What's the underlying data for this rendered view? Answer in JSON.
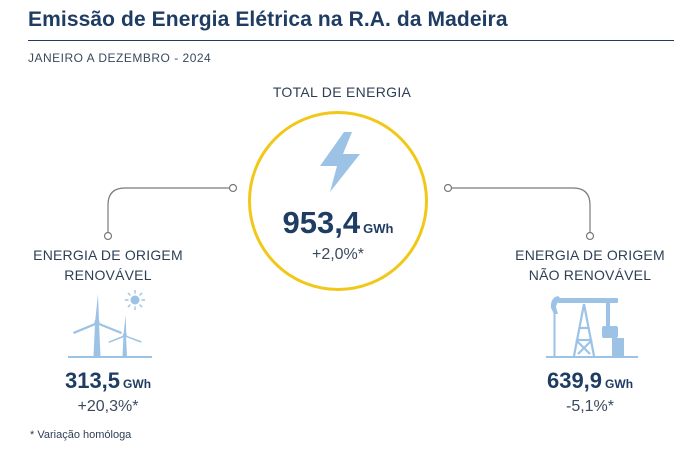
{
  "header": {
    "title": "Emissão de Energia Elétrica na R.A. da Madeira",
    "period": "JANEIRO A DEZEMBRO - 2024"
  },
  "total": {
    "label": "TOTAL DE ENERGIA",
    "value": "953,4",
    "unit": "GWh",
    "change": "+2,0%*",
    "icon": "lightning-bolt-icon"
  },
  "renewable": {
    "label_line1": "ENERGIA DE ORIGEM",
    "label_line2": "RENOVÁVEL",
    "value": "313,5",
    "unit": "GWh",
    "change": "+20,3%*",
    "icon": "wind-turbines-sun-icon"
  },
  "non_renewable": {
    "label_line1": "ENERGIA DE ORIGEM",
    "label_line2": "NÃO RENOVÁVEL",
    "value": "639,9",
    "unit": "GWh",
    "change": "-5,1%*",
    "icon": "oil-pump-icon"
  },
  "footnote": "* Variação homóloga",
  "colors": {
    "title": "#1f3c63",
    "circle_border": "#f1c818",
    "icon": "#9cc3e6",
    "connector": "#7a7a7a"
  }
}
